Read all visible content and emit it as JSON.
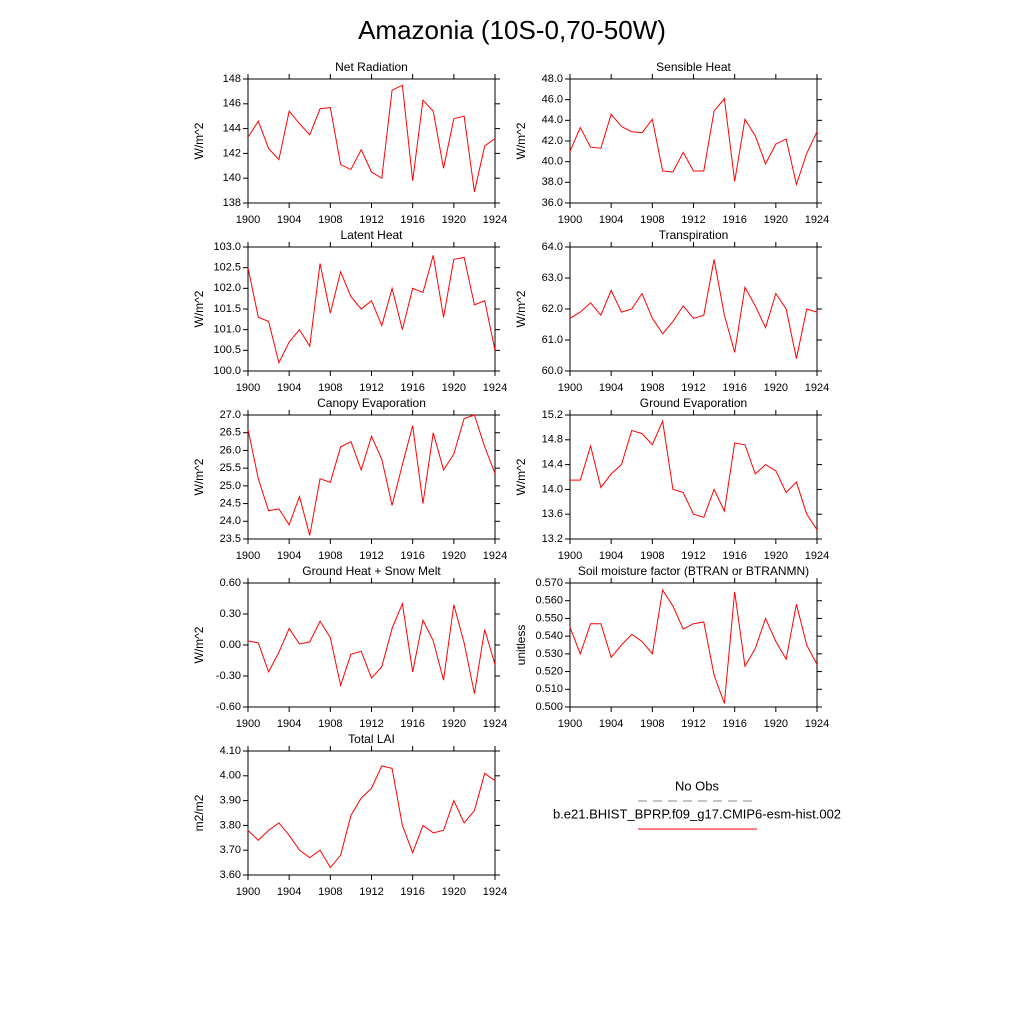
{
  "title": "Amazonia (10S-0,70-50W)",
  "legend": [
    {
      "label": "No Obs",
      "color": "#888888",
      "dash": true
    },
    {
      "label": "b.e21.BHIST_BPRP.f09_g17.CMIP6-esm-hist.002",
      "color": "#ff0000",
      "dash": false
    }
  ],
  "chart_data": [
    {
      "type": "line",
      "title": "Net Radiation",
      "ylabel": "W/m^2",
      "color": "#ff0000",
      "x": [
        1900,
        1901,
        1902,
        1903,
        1904,
        1905,
        1906,
        1907,
        1908,
        1909,
        1910,
        1911,
        1912,
        1913,
        1914,
        1915,
        1916,
        1917,
        1918,
        1919,
        1920,
        1921,
        1922,
        1923,
        1924
      ],
      "values": [
        143.3,
        144.6,
        142.4,
        141.5,
        145.4,
        144.4,
        143.5,
        145.6,
        145.7,
        141.1,
        140.7,
        142.3,
        140.5,
        140.0,
        147.1,
        147.5,
        139.8,
        146.3,
        145.4,
        140.8,
        144.8,
        145.0,
        138.9,
        142.6,
        143.2
      ],
      "xlim": [
        1900,
        1924
      ],
      "xticks": [
        1900,
        1904,
        1908,
        1912,
        1916,
        1920,
        1924
      ],
      "ylim": [
        138,
        148
      ],
      "yticks": [
        138,
        140,
        142,
        144,
        146,
        148
      ]
    },
    {
      "type": "line",
      "title": "Sensible Heat",
      "ylabel": "W/m^2",
      "color": "#ff0000",
      "x": [
        1900,
        1901,
        1902,
        1903,
        1904,
        1905,
        1906,
        1907,
        1908,
        1909,
        1910,
        1911,
        1912,
        1913,
        1914,
        1915,
        1916,
        1917,
        1918,
        1919,
        1920,
        1921,
        1922,
        1923,
        1924
      ],
      "values": [
        41.0,
        43.3,
        41.4,
        41.3,
        44.6,
        43.4,
        42.9,
        42.8,
        44.1,
        39.1,
        39.0,
        40.9,
        39.1,
        39.1,
        44.9,
        46.1,
        38.1,
        44.1,
        42.5,
        39.8,
        41.7,
        42.2,
        37.8,
        40.8,
        42.9
      ],
      "xlim": [
        1900,
        1924
      ],
      "xticks": [
        1900,
        1904,
        1908,
        1912,
        1916,
        1920,
        1924
      ],
      "ylim": [
        36,
        48
      ],
      "yticks": [
        {
          "value": 36,
          "label": "36.0"
        },
        {
          "value": 38,
          "label": "38.0"
        },
        {
          "value": 40,
          "label": "40.0"
        },
        {
          "value": 42,
          "label": "42.0"
        },
        {
          "value": 44,
          "label": "44.0"
        },
        {
          "value": 46,
          "label": "46.0"
        },
        {
          "value": 48,
          "label": "48.0"
        }
      ]
    },
    {
      "type": "line",
      "title": "Latent Heat",
      "ylabel": "W/m^2",
      "color": "#ff0000",
      "x": [
        1900,
        1901,
        1902,
        1903,
        1904,
        1905,
        1906,
        1907,
        1908,
        1909,
        1910,
        1911,
        1912,
        1913,
        1914,
        1915,
        1916,
        1917,
        1918,
        1919,
        1920,
        1921,
        1922,
        1923,
        1924
      ],
      "values": [
        102.5,
        101.3,
        101.2,
        100.2,
        100.7,
        101.0,
        100.6,
        102.6,
        101.4,
        102.4,
        101.8,
        101.5,
        101.7,
        101.1,
        102.0,
        101.0,
        102.0,
        101.9,
        102.8,
        101.3,
        102.7,
        102.75,
        101.6,
        101.7,
        100.5
      ],
      "xlim": [
        1900,
        1924
      ],
      "xticks": [
        1900,
        1904,
        1908,
        1912,
        1916,
        1920,
        1924
      ],
      "ylim": [
        100,
        103
      ],
      "yticks": [
        {
          "value": 100,
          "label": "100.0"
        },
        100.5,
        {
          "value": 101,
          "label": "101.0"
        },
        101.5,
        {
          "value": 102,
          "label": "102.0"
        },
        102.5,
        {
          "value": 103,
          "label": "103.0"
        }
      ]
    },
    {
      "type": "line",
      "title": "Transpiration",
      "ylabel": "W/m^2",
      "color": "#ff0000",
      "x": [
        1900,
        1901,
        1902,
        1903,
        1904,
        1905,
        1906,
        1907,
        1908,
        1909,
        1910,
        1911,
        1912,
        1913,
        1914,
        1915,
        1916,
        1917,
        1918,
        1919,
        1920,
        1921,
        1922,
        1923,
        1924
      ],
      "values": [
        61.7,
        61.9,
        62.2,
        61.8,
        62.6,
        61.9,
        62.0,
        62.5,
        61.7,
        61.2,
        61.6,
        62.1,
        61.7,
        61.8,
        63.6,
        61.8,
        60.6,
        62.7,
        62.1,
        61.4,
        62.5,
        62.0,
        60.4,
        62.0,
        61.9
      ],
      "xlim": [
        1900,
        1924
      ],
      "xticks": [
        1900,
        1904,
        1908,
        1912,
        1916,
        1920,
        1924
      ],
      "ylim": [
        60,
        64
      ],
      "yticks": [
        {
          "value": 60,
          "label": "60.0"
        },
        {
          "value": 61,
          "label": "61.0"
        },
        {
          "value": 62,
          "label": "62.0"
        },
        {
          "value": 63,
          "label": "63.0"
        },
        {
          "value": 64,
          "label": "64.0"
        }
      ]
    },
    {
      "type": "line",
      "title": "Canopy Evaporation",
      "ylabel": "W/m^2",
      "color": "#ff0000",
      "x": [
        1900,
        1901,
        1902,
        1903,
        1904,
        1905,
        1906,
        1907,
        1908,
        1909,
        1910,
        1911,
        1912,
        1913,
        1914,
        1915,
        1916,
        1917,
        1918,
        1919,
        1920,
        1921,
        1922,
        1923,
        1924
      ],
      "values": [
        26.6,
        25.2,
        24.3,
        24.35,
        23.9,
        24.7,
        23.6,
        25.2,
        25.1,
        26.1,
        26.25,
        25.45,
        26.4,
        25.75,
        24.45,
        25.6,
        26.7,
        24.5,
        26.5,
        25.45,
        25.9,
        26.9,
        27.0,
        26.1,
        25.35
      ],
      "xlim": [
        1900,
        1924
      ],
      "xticks": [
        1900,
        1904,
        1908,
        1912,
        1916,
        1920,
        1924
      ],
      "ylim": [
        23.5,
        27
      ],
      "yticks": [
        23.5,
        {
          "value": 24,
          "label": "24.0"
        },
        24.5,
        {
          "value": 25,
          "label": "25.0"
        },
        25.5,
        {
          "value": 26,
          "label": "26.0"
        },
        26.5,
        {
          "value": 27,
          "label": "27.0"
        }
      ]
    },
    {
      "type": "line",
      "title": "Ground Evaporation",
      "ylabel": "W/m^2",
      "color": "#ff0000",
      "x": [
        1900,
        1901,
        1902,
        1903,
        1904,
        1905,
        1906,
        1907,
        1908,
        1909,
        1910,
        1911,
        1912,
        1913,
        1914,
        1915,
        1916,
        1917,
        1918,
        1919,
        1920,
        1921,
        1922,
        1923,
        1924
      ],
      "values": [
        14.15,
        14.15,
        14.7,
        14.03,
        14.25,
        14.4,
        14.95,
        14.9,
        14.72,
        15.1,
        14.0,
        13.95,
        13.6,
        13.55,
        14.0,
        13.65,
        14.75,
        14.72,
        14.25,
        14.4,
        14.3,
        13.95,
        14.12,
        13.6,
        13.35
      ],
      "xlim": [
        1900,
        1924
      ],
      "xticks": [
        1900,
        1904,
        1908,
        1912,
        1916,
        1920,
        1924
      ],
      "ylim": [
        13.2,
        15.2
      ],
      "yticks": [
        13.2,
        13.6,
        {
          "value": 14,
          "label": "14.0"
        },
        14.4,
        14.8,
        15.2
      ]
    },
    {
      "type": "line",
      "title": "Ground Heat + Snow Melt",
      "ylabel": "W/m^2",
      "color": "#ff0000",
      "x": [
        1900,
        1901,
        1902,
        1903,
        1904,
        1905,
        1906,
        1907,
        1908,
        1909,
        1910,
        1911,
        1912,
        1913,
        1914,
        1915,
        1916,
        1917,
        1918,
        1919,
        1920,
        1921,
        1922,
        1923,
        1924
      ],
      "values": [
        0.04,
        0.02,
        -0.26,
        -0.07,
        0.16,
        0.01,
        0.03,
        0.23,
        0.07,
        -0.39,
        -0.09,
        -0.06,
        -0.32,
        -0.21,
        0.16,
        0.4,
        -0.26,
        0.24,
        0.04,
        -0.34,
        0.39,
        0.02,
        -0.47,
        0.15,
        -0.19
      ],
      "xlim": [
        1900,
        1924
      ],
      "xticks": [
        1900,
        1904,
        1908,
        1912,
        1916,
        1920,
        1924
      ],
      "ylim": [
        -0.6,
        0.6
      ],
      "yticks": [
        {
          "value": -0.6,
          "label": "-0.60"
        },
        {
          "value": -0.3,
          "label": "-0.30"
        },
        {
          "value": 0,
          "label": "0.00"
        },
        {
          "value": 0.3,
          "label": "0.30"
        },
        {
          "value": 0.6,
          "label": "0.60"
        }
      ]
    },
    {
      "type": "line",
      "title": "Soil moisture factor (BTRAN or BTRANMN)",
      "ylabel": "unitless",
      "color": "#ff0000",
      "x": [
        1900,
        1901,
        1902,
        1903,
        1904,
        1905,
        1906,
        1907,
        1908,
        1909,
        1910,
        1911,
        1912,
        1913,
        1914,
        1915,
        1916,
        1917,
        1918,
        1919,
        1920,
        1921,
        1922,
        1923,
        1924
      ],
      "values": [
        0.545,
        0.53,
        0.547,
        0.547,
        0.528,
        0.535,
        0.541,
        0.537,
        0.53,
        0.566,
        0.557,
        0.544,
        0.547,
        0.548,
        0.518,
        0.502,
        0.565,
        0.523,
        0.533,
        0.55,
        0.537,
        0.527,
        0.558,
        0.535,
        0.524
      ],
      "xlim": [
        1900,
        1924
      ],
      "xticks": [
        1900,
        1904,
        1908,
        1912,
        1916,
        1920,
        1924
      ],
      "ylim": [
        0.5,
        0.57
      ],
      "yticks": [
        {
          "value": 0.5,
          "label": "0.500"
        },
        {
          "value": 0.51,
          "label": "0.510"
        },
        {
          "value": 0.52,
          "label": "0.520"
        },
        {
          "value": 0.53,
          "label": "0.530"
        },
        {
          "value": 0.54,
          "label": "0.540"
        },
        {
          "value": 0.55,
          "label": "0.550"
        },
        {
          "value": 0.56,
          "label": "0.560"
        },
        {
          "value": 0.57,
          "label": "0.570"
        }
      ]
    },
    {
      "type": "line",
      "title": "Total LAI",
      "ylabel": "m2/m2",
      "color": "#ff0000",
      "x": [
        1900,
        1901,
        1902,
        1903,
        1904,
        1905,
        1906,
        1907,
        1908,
        1909,
        1910,
        1911,
        1912,
        1913,
        1914,
        1915,
        1916,
        1917,
        1918,
        1919,
        1920,
        1921,
        1922,
        1923,
        1924
      ],
      "values": [
        3.78,
        3.74,
        3.78,
        3.81,
        3.76,
        3.7,
        3.67,
        3.7,
        3.63,
        3.68,
        3.84,
        3.91,
        3.95,
        4.04,
        4.03,
        3.8,
        3.69,
        3.8,
        3.77,
        3.78,
        3.9,
        3.81,
        3.86,
        4.01,
        3.98
      ],
      "xlim": [
        1900,
        1924
      ],
      "xticks": [
        1900,
        1904,
        1908,
        1912,
        1916,
        1920,
        1924
      ],
      "ylim": [
        3.6,
        4.1
      ],
      "yticks": [
        {
          "value": 3.6,
          "label": "3.60"
        },
        {
          "value": 3.7,
          "label": "3.70"
        },
        {
          "value": 3.8,
          "label": "3.80"
        },
        {
          "value": 3.9,
          "label": "3.90"
        },
        {
          "value": 4,
          "label": "4.00"
        },
        {
          "value": 4.1,
          "label": "4.10"
        }
      ]
    }
  ]
}
